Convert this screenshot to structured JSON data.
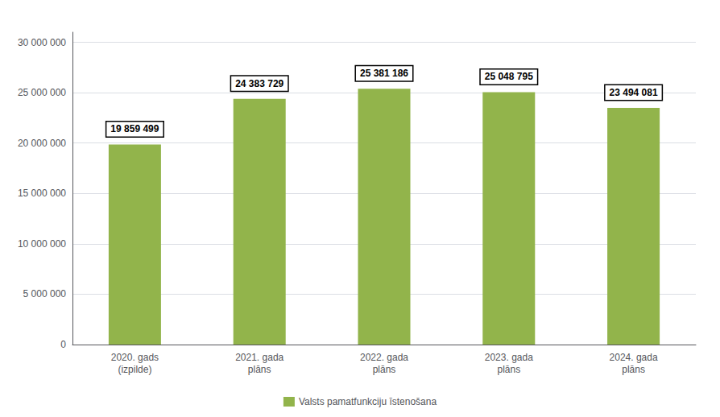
{
  "chart_data": {
    "type": "bar",
    "categories": [
      "2020. gads\n(izpilde)",
      "2021. gada\nplāns",
      "2022. gada\nplāns",
      "2023. gada\nplāns",
      "2024. gada\nplāns"
    ],
    "series": [
      {
        "name": "Valsts pamatfunkciju īstenošana",
        "color": "#92B44B",
        "values": [
          19859499,
          24383729,
          25381186,
          25048795,
          23494081
        ],
        "value_labels": [
          "19 859 499",
          "24 383 729",
          "25 381 186",
          "25 048 795",
          "23 494 081"
        ]
      }
    ],
    "ylim": [
      0,
      31000000
    ],
    "yticks": [
      0,
      {
        "value": 5000000,
        "label": "5 000 000"
      },
      {
        "value": 10000000,
        "label": "10 000 000"
      },
      {
        "value": 15000000,
        "label": "15 000 000"
      },
      {
        "value": 20000000,
        "label": "20 000 000"
      },
      {
        "value": 25000000,
        "label": "25 000 000"
      },
      {
        "value": 30000000,
        "label": "30 000 000"
      }
    ],
    "grid": true,
    "legend": "bottom",
    "data_labels": true
  }
}
